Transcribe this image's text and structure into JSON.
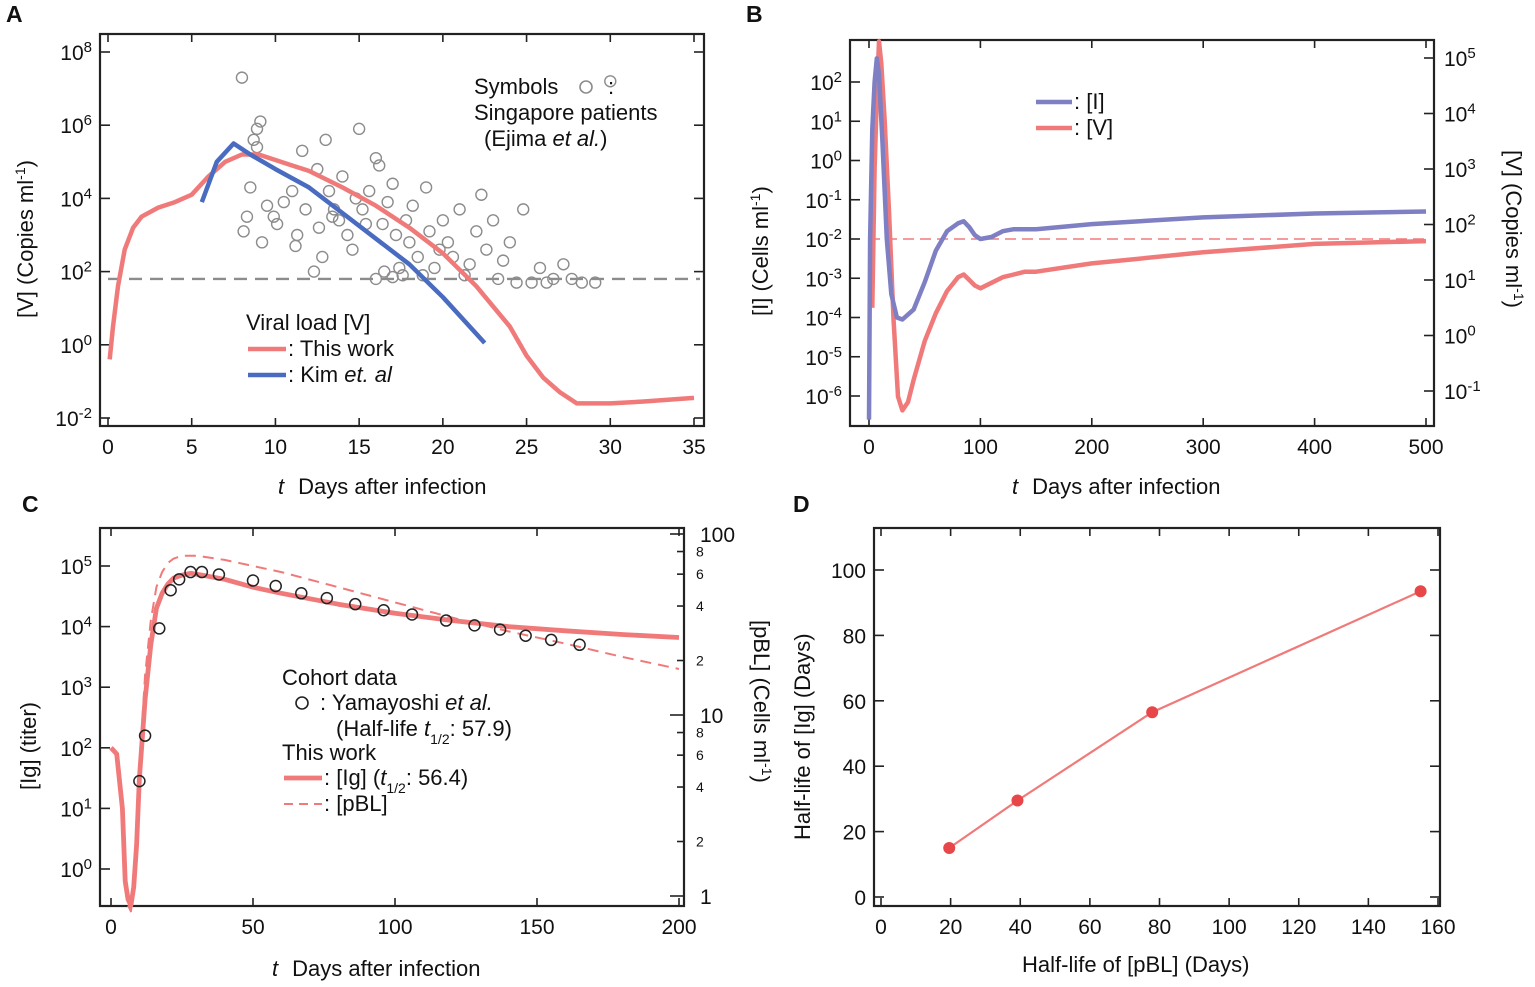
{
  "colors": {
    "red": "#f07a7a",
    "blue": "#4a6cc0",
    "purple": "#7f7fc4",
    "gray": "#8c8c8c",
    "point_red": "#e8474a"
  },
  "chart_data": [
    {
      "panel": "A",
      "type": "line",
      "xlabel": "Days after infection",
      "xlabel_var": "t",
      "ylabel": "[V]  (Copies ml",
      "ylabel_sup": "-1",
      "ylabel_close": ")",
      "xlim": [
        0,
        35
      ],
      "ylim_log10": [
        -2,
        8
      ],
      "x_ticks": [
        0,
        5,
        10,
        15,
        20,
        25,
        30,
        35
      ],
      "y_ticks_exp": [
        -2,
        0,
        2,
        4,
        6,
        8
      ],
      "threshold_log10": 1.8,
      "legend": {
        "title": "Viral load [V]",
        "entries": [
          {
            "prefix": ": This work",
            "name": "This work",
            "color": "#f07a7a"
          },
          {
            "prefix": ": Kim ",
            "italic": "et. al",
            "name": "Kim et. al",
            "color": "#4a6cc0"
          }
        ]
      },
      "annotation": {
        "line1": "Symbols",
        "line1_sep": ":",
        "line2": "Singapore patients",
        "line3_prefix": "(Ejima ",
        "line3_italic": "et al.",
        "line3_suffix": ")"
      },
      "series": [
        {
          "name": "This work",
          "x": [
            0.1,
            0.3,
            0.6,
            1,
            1.5,
            2,
            3,
            4,
            5,
            6,
            7,
            8,
            9,
            10,
            11,
            12,
            14,
            16,
            18,
            20,
            22,
            24,
            25,
            26,
            27,
            28,
            30,
            32,
            35
          ],
          "log10y": [
            -0.4,
            0.5,
            1.6,
            2.6,
            3.2,
            3.5,
            3.75,
            3.9,
            4.1,
            4.6,
            5.0,
            5.2,
            5.2,
            5.05,
            4.9,
            4.75,
            4.3,
            3.8,
            3.2,
            2.5,
            1.6,
            0.5,
            -0.3,
            -0.9,
            -1.3,
            -1.6,
            -1.6,
            -1.55,
            -1.45
          ]
        },
        {
          "name": "Kim et. al",
          "x": [
            5.6,
            6.5,
            7.5,
            8.5,
            10,
            12,
            14,
            16,
            18,
            20,
            22.5
          ],
          "log10y": [
            3.9,
            5.0,
            5.5,
            5.2,
            4.8,
            4.3,
            3.6,
            2.9,
            2.2,
            1.3,
            0.05
          ]
        }
      ],
      "scatter": {
        "name": "Singapore patients",
        "x": [
          8,
          8.7,
          8.9,
          9.1,
          8.5,
          8.3,
          8.1,
          9.5,
          9.2,
          10.5,
          11,
          11.3,
          11.6,
          11.8,
          11.2,
          12.5,
          12.8,
          12.3,
          12.6,
          13,
          13.2,
          13.5,
          13.8,
          14,
          14.3,
          14.6,
          14.8,
          15,
          15.2,
          15.4,
          15.6,
          16,
          16.2,
          16.4,
          16.5,
          16.7,
          17,
          17.2,
          17.4,
          17.6,
          17.8,
          18,
          18.2,
          18.5,
          18.8,
          19,
          19.2,
          19.5,
          19.8,
          20,
          20.3,
          20.6,
          21,
          21.3,
          21.6,
          22,
          22.3,
          22.6,
          23,
          23.3,
          23.6,
          24,
          24.4,
          24.8,
          25.3,
          25.8,
          26.2,
          26.6,
          27.2,
          27.7,
          28.3,
          29.1,
          30,
          17,
          16,
          8.9,
          10.1,
          9.9,
          13.4
        ],
        "log10y": [
          7.3,
          5.6,
          5.4,
          6.1,
          4.3,
          3.5,
          3.1,
          3.8,
          2.8,
          3.9,
          4.2,
          3.0,
          5.3,
          3.7,
          2.7,
          4.8,
          2.4,
          2.0,
          3.2,
          5.6,
          4.2,
          3.7,
          3.4,
          4.6,
          3.0,
          2.6,
          4.0,
          5.9,
          3.7,
          3.3,
          4.2,
          5.1,
          4.9,
          3.3,
          2.0,
          3.9,
          4.4,
          3.0,
          2.1,
          1.9,
          3.4,
          2.8,
          3.8,
          2.4,
          1.9,
          4.3,
          3.1,
          2.1,
          2.6,
          3.4,
          2.8,
          2.4,
          3.7,
          1.9,
          2.2,
          3.1,
          4.1,
          2.6,
          3.4,
          1.8,
          2.3,
          2.8,
          1.7,
          3.7,
          1.7,
          2.1,
          1.7,
          1.8,
          2.2,
          1.8,
          1.7,
          1.7,
          7.2,
          1.85,
          1.8,
          5.9,
          3.3,
          3.5,
          3.5
        ]
      }
    },
    {
      "panel": "B",
      "type": "line",
      "xlabel": "Days after infection",
      "xlabel_var": "t",
      "ylabel_left": "[I]  (Cells ml",
      "ylabel_left_sup": "-1",
      "ylabel_left_close": ")",
      "ylabel_right": "[V]  (Copies ml",
      "ylabel_right_sup": "-1",
      "ylabel_right_close": ")",
      "xlim": [
        0,
        500
      ],
      "x_ticks": [
        0,
        100,
        200,
        300,
        400,
        500
      ],
      "y_left_ticks_exp": [
        -6,
        -5,
        -4,
        -3,
        -2,
        -1,
        0,
        1,
        2
      ],
      "y_right_ticks_exp": [
        -1,
        0,
        1,
        2,
        3,
        4,
        5
      ],
      "threshold_left_log10": -2,
      "legend": [
        {
          "label": ": [I]",
          "color": "#7f7fc4"
        },
        {
          "label": ": [V]",
          "color": "#f07a7a"
        }
      ],
      "series": [
        {
          "name": "[I]",
          "axis": "left",
          "x": [
            0,
            1,
            3,
            5,
            7,
            9,
            12,
            16,
            20,
            25,
            30,
            40,
            50,
            60,
            70,
            80,
            85,
            90,
            95,
            100,
            110,
            120,
            130,
            140,
            150,
            200,
            300,
            400,
            500
          ],
          "log10y": [
            -6.6,
            -2,
            0.8,
            2.0,
            2.6,
            2.2,
            0.5,
            -2.0,
            -3.4,
            -4.0,
            -4.05,
            -3.8,
            -3.1,
            -2.3,
            -1.8,
            -1.6,
            -1.55,
            -1.7,
            -1.9,
            -2.0,
            -1.95,
            -1.8,
            -1.75,
            -1.75,
            -1.75,
            -1.62,
            -1.45,
            -1.35,
            -1.3
          ]
        },
        {
          "name": "[V]",
          "axis": "right",
          "x": [
            3,
            5,
            7,
            9,
            11,
            14,
            18,
            22,
            26,
            30,
            35,
            40,
            50,
            60,
            70,
            80,
            85,
            90,
            95,
            100,
            110,
            120,
            130,
            140,
            150,
            200,
            300,
            400,
            500
          ],
          "log10y": [
            0.5,
            3.0,
            4.3,
            5.3,
            4.9,
            3.9,
            2.2,
            0.3,
            -1.1,
            -1.35,
            -1.2,
            -0.8,
            -0.1,
            0.4,
            0.8,
            1.05,
            1.1,
            1.0,
            0.9,
            0.85,
            0.95,
            1.05,
            1.1,
            1.15,
            1.15,
            1.3,
            1.5,
            1.65,
            1.7
          ]
        }
      ]
    },
    {
      "panel": "C",
      "type": "line",
      "xlabel": "Days after infection",
      "xlabel_var": "t",
      "ylabel_left": "[Ig]   (titer)",
      "ylabel_right": "[pBL]   (Cells ml",
      "ylabel_right_sup": "-1",
      "ylabel_right_close": ")",
      "xlim": [
        0,
        200
      ],
      "x_ticks": [
        0,
        50,
        100,
        150,
        200
      ],
      "y_left_ticks_exp": [
        0,
        1,
        2,
        3,
        4,
        5
      ],
      "y_right_ticks": [
        1,
        10,
        100
      ],
      "y_right_minor": [
        2,
        4,
        6,
        8,
        20,
        40,
        60,
        80
      ],
      "legend": {
        "cohort_title": "Cohort data",
        "cohort_entry_prefix": ": Yamayoshi ",
        "cohort_entry_italic": "et al.",
        "halflife_prefix": "(Half-life ",
        "halflife_var": "t",
        "halflife_sub": "1/2",
        "halflife_value": ": 57.9)",
        "this_work_title": "This work",
        "ig_prefix": ": [Ig]  (",
        "ig_var": "t",
        "ig_sub": "1/2",
        "ig_value": ": 56.4)",
        "pbl_label": ": [pBL]"
      },
      "series": [
        {
          "name": "[Ig]",
          "x": [
            0,
            2,
            4,
            5,
            6,
            7,
            8,
            9,
            10,
            12,
            14,
            16,
            18,
            20,
            22,
            25,
            28,
            32,
            40,
            50,
            60,
            80,
            100,
            120,
            140,
            160,
            180,
            200
          ],
          "log10y": [
            2.0,
            1.9,
            1.0,
            -0.2,
            -0.5,
            -0.6,
            -0.3,
            0.4,
            1.5,
            2.8,
            3.7,
            4.3,
            4.55,
            4.7,
            4.8,
            4.85,
            4.88,
            4.85,
            4.78,
            4.65,
            4.55,
            4.37,
            4.22,
            4.1,
            4.0,
            3.93,
            3.87,
            3.82
          ]
        },
        {
          "name": "[pBL]",
          "x": [
            6,
            7,
            8,
            9,
            10,
            12,
            14,
            16,
            18,
            20,
            22,
            25,
            30,
            40,
            50,
            60,
            80,
            100,
            120,
            140,
            160,
            180,
            200
          ],
          "log10y": [
            -0.6,
            -0.7,
            -0.3,
            0.6,
            1.7,
            3.2,
            4.1,
            4.65,
            4.9,
            5.05,
            5.12,
            5.17,
            5.17,
            5.1,
            5.0,
            4.9,
            4.65,
            4.4,
            4.15,
            3.92,
            3.72,
            3.5,
            3.3
          ]
        }
      ],
      "scatter": {
        "name": "Yamayoshi et al.",
        "x": [
          10,
          12,
          17,
          21,
          24,
          28,
          32,
          38,
          50,
          58,
          67,
          76,
          86,
          96,
          106,
          118,
          128,
          137,
          146,
          155,
          165
        ],
        "log10y": [
          1.45,
          2.2,
          3.97,
          4.6,
          4.78,
          4.9,
          4.9,
          4.86,
          4.76,
          4.67,
          4.55,
          4.47,
          4.37,
          4.27,
          4.2,
          4.1,
          4.02,
          3.95,
          3.85,
          3.78,
          3.7
        ]
      }
    },
    {
      "panel": "D",
      "type": "line",
      "xlabel": "Half-life of [pBL]     (Days)",
      "ylabel": "Half-life of [Ig]     (Days)",
      "xlim": [
        -1,
        161
      ],
      "ylim": [
        -3,
        112
      ],
      "x_ticks": [
        0,
        20,
        40,
        60,
        80,
        100,
        120,
        140,
        160
      ],
      "y_ticks": [
        0,
        20,
        40,
        60,
        80,
        100
      ],
      "points": [
        {
          "x": 19.6,
          "y": 15
        },
        {
          "x": 39.2,
          "y": 29.5
        },
        {
          "x": 77.9,
          "y": 56.5
        },
        {
          "x": 155,
          "y": 93.5
        }
      ]
    }
  ],
  "panel_letters": [
    "A",
    "B",
    "C",
    "D"
  ]
}
